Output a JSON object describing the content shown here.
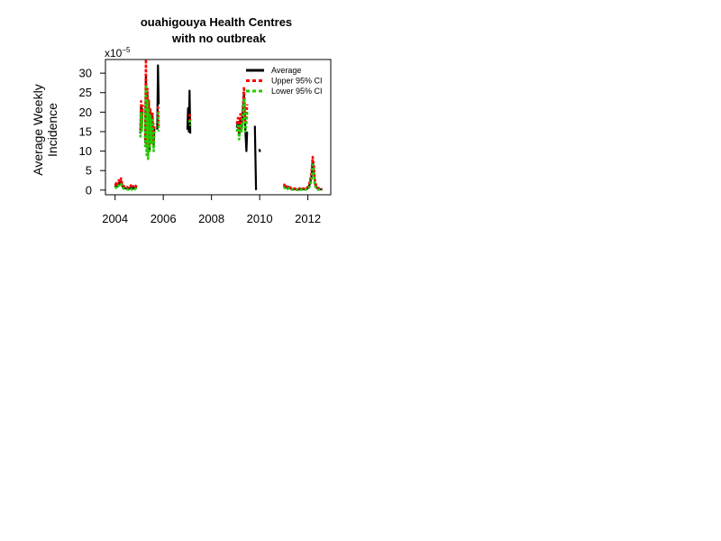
{
  "chart_data": {
    "type": "line",
    "title_line1": "ouahigouya Health Centres",
    "title_line2": "with no outbreak",
    "xlabel": "",
    "ylabel_line1": "Average Weekly",
    "ylabel_line2": "Incidence",
    "y_multiplier_base": "x10",
    "y_multiplier_exp": "−5",
    "xlim": [
      2003.6,
      2012.95
    ],
    "ylim": [
      -1.2,
      33.5
    ],
    "xticks": [
      2004,
      2006,
      2008,
      2010,
      2012
    ],
    "xtick_labels": [
      "2004",
      "2006",
      "2008",
      "2010",
      "2012"
    ],
    "yticks": [
      0,
      5,
      10,
      15,
      20,
      25,
      30
    ],
    "ytick_labels": [
      "0",
      "5",
      "10",
      "15",
      "20",
      "25",
      "30"
    ],
    "legend_position": "top-right",
    "series": [
      {
        "name": "Average",
        "color": "#000000",
        "dash": "solid",
        "segments": [
          [
            [
              2004.0,
              0.8
            ],
            [
              2004.05,
              1.2
            ],
            [
              2004.1,
              0.9
            ],
            [
              2004.15,
              1.8
            ],
            [
              2004.2,
              1.5
            ],
            [
              2004.25,
              2.2
            ],
            [
              2004.3,
              1.0
            ],
            [
              2004.35,
              0.7
            ],
            [
              2004.4,
              0.5
            ],
            [
              2004.45,
              0.4
            ],
            [
              2004.5,
              0.5
            ],
            [
              2004.55,
              0.3
            ],
            [
              2004.6,
              0.4
            ],
            [
              2004.65,
              0.8
            ],
            [
              2004.7,
              0.3
            ],
            [
              2004.75,
              0.6
            ],
            [
              2004.8,
              0.4
            ],
            [
              2004.85,
              0.7
            ],
            [
              2004.9,
              0.5
            ]
          ],
          [
            [
              2005.05,
              14.5
            ],
            [
              2005.08,
              21.5
            ],
            [
              2005.11,
              16.0
            ],
            [
              2005.14,
              21.0
            ]
          ],
          [
            [
              2005.25,
              12.0
            ],
            [
              2005.28,
              29.5
            ],
            [
              2005.31,
              11.0
            ],
            [
              2005.34,
              25.0
            ],
            [
              2005.37,
              9.0
            ],
            [
              2005.4,
              22.0
            ],
            [
              2005.43,
              10.5
            ],
            [
              2005.46,
              20.0
            ],
            [
              2005.5,
              13.0
            ],
            [
              2005.55,
              19.0
            ],
            [
              2005.6,
              11.0
            ],
            [
              2005.63,
              16.0
            ]
          ],
          [
            [
              2005.75,
              15.5
            ],
            [
              2005.78,
              32.0
            ],
            [
              2005.81,
              22.0
            ]
          ],
          [
            [
              2007.0,
              15.5
            ],
            [
              2007.03,
              21.0
            ],
            [
              2007.06,
              15.0
            ],
            [
              2007.09,
              25.5
            ],
            [
              2007.12,
              14.5
            ]
          ],
          [
            [
              2009.05,
              16.0
            ],
            [
              2009.1,
              17.5
            ],
            [
              2009.15,
              14.0
            ],
            [
              2009.2,
              18.5
            ],
            [
              2009.25,
              16.0
            ],
            [
              2009.3,
              20.0
            ],
            [
              2009.35,
              25.0
            ],
            [
              2009.4,
              16.0
            ],
            [
              2009.45,
              10.0
            ],
            [
              2009.48,
              15.0
            ]
          ],
          [
            [
              2009.8,
              16.5
            ],
            [
              2009.85,
              0.0
            ]
          ],
          [
            [
              2009.98,
              10.5
            ],
            [
              2010.02,
              9.8
            ]
          ],
          [
            [
              2011.0,
              1.2
            ],
            [
              2011.05,
              0.8
            ],
            [
              2011.1,
              1.0
            ],
            [
              2011.15,
              0.5
            ],
            [
              2011.2,
              0.8
            ],
            [
              2011.3,
              0.3
            ],
            [
              2011.4,
              0.2
            ],
            [
              2011.5,
              0.2
            ],
            [
              2011.6,
              0.1
            ],
            [
              2011.7,
              0.3
            ],
            [
              2011.8,
              0.2
            ],
            [
              2011.9,
              0.2
            ],
            [
              2012.0,
              0.5
            ],
            [
              2012.05,
              1.0
            ],
            [
              2012.1,
              2.0
            ],
            [
              2012.15,
              3.5
            ],
            [
              2012.2,
              7.5
            ],
            [
              2012.25,
              5.0
            ],
            [
              2012.3,
              1.5
            ],
            [
              2012.35,
              0.8
            ],
            [
              2012.4,
              0.4
            ],
            [
              2012.45,
              0.3
            ],
            [
              2012.5,
              0.2
            ],
            [
              2012.55,
              0.2
            ],
            [
              2012.6,
              0.1
            ]
          ]
        ]
      },
      {
        "name": "Upper 95% CI",
        "color": "#ff0000",
        "dash": "dashed",
        "segments": [
          [
            [
              2004.0,
              1.2
            ],
            [
              2004.05,
              1.8
            ],
            [
              2004.1,
              1.3
            ],
            [
              2004.15,
              2.5
            ],
            [
              2004.2,
              2.1
            ],
            [
              2004.25,
              3.0
            ],
            [
              2004.3,
              1.5
            ],
            [
              2004.35,
              1.1
            ],
            [
              2004.4,
              0.8
            ],
            [
              2004.45,
              0.7
            ],
            [
              2004.5,
              0.8
            ],
            [
              2004.55,
              0.6
            ],
            [
              2004.6,
              0.7
            ],
            [
              2004.65,
              1.2
            ],
            [
              2004.7,
              0.6
            ],
            [
              2004.75,
              1.0
            ],
            [
              2004.8,
              0.7
            ],
            [
              2004.85,
              1.1
            ],
            [
              2004.9,
              0.8
            ]
          ],
          [
            [
              2005.05,
              15.5
            ],
            [
              2005.08,
              22.8
            ],
            [
              2005.11,
              17.0
            ],
            [
              2005.14,
              22.0
            ]
          ],
          [
            [
              2005.25,
              13.0
            ],
            [
              2005.28,
              33.5
            ],
            [
              2005.31,
              12.0
            ],
            [
              2005.34,
              26.0
            ],
            [
              2005.37,
              10.0
            ],
            [
              2005.4,
              23.0
            ],
            [
              2005.43,
              11.5
            ],
            [
              2005.46,
              21.0
            ],
            [
              2005.5,
              14.0
            ],
            [
              2005.55,
              20.0
            ],
            [
              2005.6,
              12.0
            ],
            [
              2005.63,
              17.0
            ]
          ],
          [
            [
              2005.78,
              21.5
            ],
            [
              2005.81,
              16.5
            ]
          ],
          [
            [
              2007.09,
              19.5
            ],
            [
              2007.12,
              17.5
            ]
          ],
          [
            [
              2009.05,
              17.0
            ],
            [
              2009.1,
              18.5
            ],
            [
              2009.15,
              15.0
            ],
            [
              2009.2,
              19.5
            ],
            [
              2009.25,
              17.0
            ],
            [
              2009.3,
              21.0
            ],
            [
              2009.35,
              26.5
            ],
            [
              2009.4,
              17.0
            ],
            [
              2009.45,
              19.0
            ],
            [
              2009.48,
              22.0
            ]
          ],
          [
            [
              2011.0,
              1.6
            ],
            [
              2011.05,
              1.2
            ],
            [
              2011.1,
              1.4
            ],
            [
              2011.15,
              0.8
            ],
            [
              2011.2,
              1.1
            ],
            [
              2011.3,
              0.5
            ],
            [
              2011.4,
              0.4
            ],
            [
              2011.5,
              0.4
            ],
            [
              2011.6,
              0.3
            ],
            [
              2011.7,
              0.5
            ],
            [
              2011.8,
              0.4
            ],
            [
              2011.9,
              0.4
            ],
            [
              2012.0,
              0.8
            ],
            [
              2012.05,
              1.4
            ],
            [
              2012.1,
              2.6
            ],
            [
              2012.15,
              4.5
            ],
            [
              2012.2,
              8.5
            ],
            [
              2012.25,
              6.0
            ],
            [
              2012.3,
              2.0
            ],
            [
              2012.35,
              1.1
            ],
            [
              2012.4,
              0.6
            ],
            [
              2012.45,
              0.5
            ],
            [
              2012.5,
              0.4
            ],
            [
              2012.55,
              0.3
            ],
            [
              2012.6,
              0.2
            ]
          ]
        ]
      },
      {
        "name": "Lower 95% CI",
        "color": "#22cc00",
        "dash": "dashed",
        "segments": [
          [
            [
              2004.0,
              0.4
            ],
            [
              2004.05,
              0.7
            ],
            [
              2004.1,
              0.5
            ],
            [
              2004.15,
              1.2
            ],
            [
              2004.2,
              1.0
            ],
            [
              2004.25,
              1.5
            ],
            [
              2004.3,
              0.6
            ],
            [
              2004.35,
              0.4
            ],
            [
              2004.4,
              0.2
            ],
            [
              2004.45,
              0.2
            ],
            [
              2004.5,
              0.2
            ],
            [
              2004.55,
              0.1
            ],
            [
              2004.6,
              0.2
            ],
            [
              2004.65,
              0.4
            ],
            [
              2004.7,
              0.1
            ],
            [
              2004.75,
              0.3
            ],
            [
              2004.8,
              0.2
            ],
            [
              2004.85,
              0.4
            ],
            [
              2004.9,
              0.2
            ]
          ],
          [
            [
              2005.05,
              13.5
            ],
            [
              2005.08,
              20.0
            ],
            [
              2005.11,
              15.0
            ],
            [
              2005.14,
              20.0
            ]
          ],
          [
            [
              2005.25,
              11.0
            ],
            [
              2005.28,
              27.0
            ],
            [
              2005.31,
              9.0
            ],
            [
              2005.34,
              23.0
            ],
            [
              2005.37,
              8.0
            ],
            [
              2005.4,
              20.5
            ],
            [
              2005.43,
              9.5
            ],
            [
              2005.46,
              19.0
            ],
            [
              2005.5,
              12.0
            ],
            [
              2005.55,
              18.0
            ],
            [
              2005.6,
              10.0
            ],
            [
              2005.63,
              15.0
            ]
          ],
          [
            [
              2005.78,
              20.0
            ],
            [
              2005.81,
              15.0
            ]
          ],
          [
            [
              2007.09,
              18.0
            ],
            [
              2007.12,
              16.5
            ]
          ],
          [
            [
              2009.05,
              15.0
            ],
            [
              2009.1,
              16.5
            ],
            [
              2009.15,
              13.0
            ],
            [
              2009.2,
              17.0
            ],
            [
              2009.25,
              15.0
            ],
            [
              2009.3,
              18.5
            ],
            [
              2009.35,
              23.5
            ],
            [
              2009.4,
              15.0
            ],
            [
              2009.45,
              17.0
            ],
            [
              2009.48,
              20.0
            ]
          ],
          [
            [
              2011.0,
              0.8
            ],
            [
              2011.05,
              0.5
            ],
            [
              2011.1,
              0.6
            ],
            [
              2011.15,
              0.3
            ],
            [
              2011.2,
              0.5
            ],
            [
              2011.3,
              0.1
            ],
            [
              2011.4,
              0.1
            ],
            [
              2011.5,
              0.1
            ],
            [
              2011.6,
              0.0
            ],
            [
              2011.7,
              0.1
            ],
            [
              2011.8,
              0.1
            ],
            [
              2011.9,
              0.1
            ],
            [
              2012.0,
              0.3
            ],
            [
              2012.05,
              0.6
            ],
            [
              2012.1,
              1.5
            ],
            [
              2012.15,
              2.5
            ],
            [
              2012.2,
              6.5
            ],
            [
              2012.25,
              4.0
            ],
            [
              2012.3,
              1.0
            ],
            [
              2012.35,
              0.5
            ],
            [
              2012.4,
              0.2
            ],
            [
              2012.45,
              0.1
            ],
            [
              2012.5,
              0.1
            ],
            [
              2012.55,
              0.1
            ],
            [
              2012.6,
              0.0
            ]
          ]
        ]
      }
    ]
  }
}
